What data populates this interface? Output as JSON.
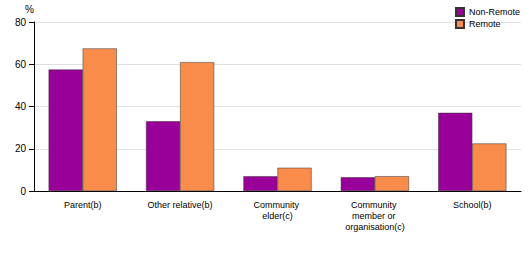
{
  "chart_data": {
    "type": "bar",
    "y_label": "%",
    "categories": [
      "Parent(b)",
      "Other relative(b)",
      "Community elder(c)",
      "Community member or organisation(c)",
      "School(b)"
    ],
    "series": [
      {
        "name": "Non-Remote",
        "color": "#990099",
        "values": [
          57.5,
          33,
          7,
          6.5,
          37
        ]
      },
      {
        "name": "Remote",
        "color": "#f98c4b",
        "values": [
          67.5,
          61,
          11,
          7,
          22.5
        ]
      }
    ],
    "ylim": [
      0,
      80
    ],
    "yticks": [
      0,
      20,
      40,
      60,
      80
    ],
    "grid": true,
    "legend": "top-right"
  }
}
